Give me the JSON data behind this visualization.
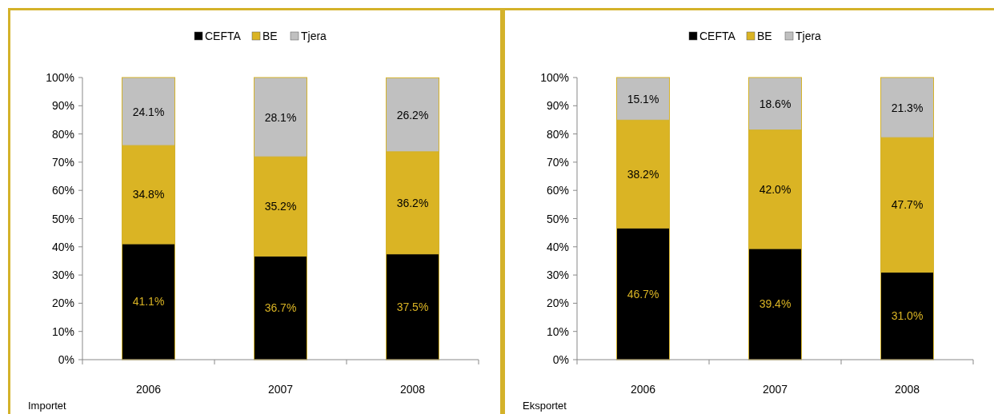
{
  "chart_data": [
    {
      "type": "bar",
      "stacked": true,
      "categories": [
        "2006",
        "2007",
        "2008"
      ],
      "ylim": [
        0,
        100
      ],
      "yticks": [
        {
          "value": 0,
          "label": "0%"
        },
        {
          "value": 10,
          "label": "10%"
        },
        {
          "value": 20,
          "label": "20%"
        },
        {
          "value": 30,
          "label": "30%"
        },
        {
          "value": 40,
          "label": "40%"
        },
        {
          "value": 50,
          "label": "50%"
        },
        {
          "value": 60,
          "label": "60%"
        },
        {
          "value": 70,
          "label": "70%"
        },
        {
          "value": 80,
          "label": "80%"
        },
        {
          "value": 90,
          "label": "90%"
        },
        {
          "value": 100,
          "label": "100%"
        }
      ],
      "legend": "top",
      "grid": false,
      "annotations": [
        "Importet"
      ],
      "series": [
        {
          "name": "CEFTA",
          "color": "#000000",
          "values": [
            41.1,
            36.7,
            37.5
          ],
          "value_labels": [
            "41.1%",
            "36.7%",
            "37.5%"
          ]
        },
        {
          "name": "BE",
          "color": "#dab424",
          "values": [
            34.8,
            35.2,
            36.2
          ],
          "value_labels": [
            "34.8%",
            "35.2%",
            "36.2%"
          ]
        },
        {
          "name": "Tjera",
          "color": "#c0c0c0",
          "values": [
            24.1,
            28.1,
            26.2
          ],
          "value_labels": [
            "24.1%",
            "28.1%",
            "26.2%"
          ]
        }
      ]
    },
    {
      "type": "bar",
      "stacked": true,
      "categories": [
        "2006",
        "2007",
        "2008"
      ],
      "ylim": [
        0,
        100
      ],
      "yticks": [
        {
          "value": 0,
          "label": "0%"
        },
        {
          "value": 10,
          "label": "10%"
        },
        {
          "value": 20,
          "label": "20%"
        },
        {
          "value": 30,
          "label": "30%"
        },
        {
          "value": 40,
          "label": "40%"
        },
        {
          "value": 50,
          "label": "50%"
        },
        {
          "value": 60,
          "label": "60%"
        },
        {
          "value": 70,
          "label": "70%"
        },
        {
          "value": 80,
          "label": "80%"
        },
        {
          "value": 90,
          "label": "90%"
        },
        {
          "value": 100,
          "label": "100%"
        }
      ],
      "legend": "top",
      "grid": false,
      "annotations": [
        "Eksportet"
      ],
      "series": [
        {
          "name": "CEFTA",
          "color": "#000000",
          "values": [
            46.7,
            39.4,
            31.0
          ],
          "value_labels": [
            "46.7%",
            "39.4%",
            "31.0%"
          ]
        },
        {
          "name": "BE",
          "color": "#dab424",
          "values": [
            38.2,
            42.0,
            47.7
          ],
          "value_labels": [
            "38.2%",
            "42.0%",
            "47.7%"
          ]
        },
        {
          "name": "Tjera",
          "color": "#c0c0c0",
          "values": [
            15.1,
            18.6,
            21.3
          ],
          "value_labels": [
            "15.1%",
            "18.6%",
            "21.3%"
          ]
        }
      ]
    }
  ]
}
